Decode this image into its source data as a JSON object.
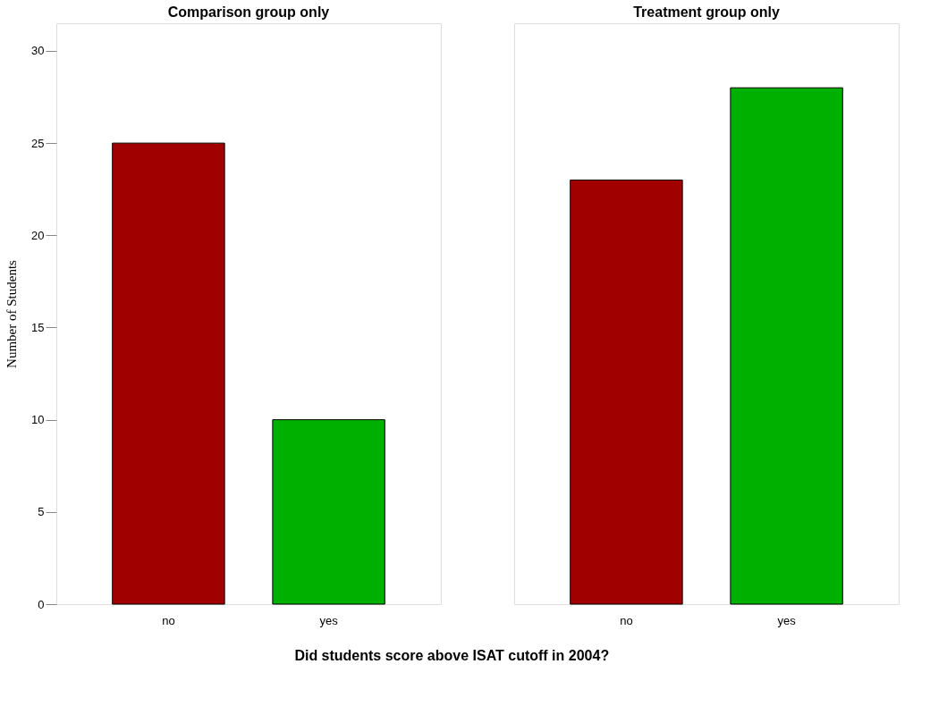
{
  "chart_data": [
    {
      "type": "bar",
      "title": "Comparison group only",
      "xlabel": "Did students score above ISAT cutoff in 2004?",
      "ylabel": "Number of Students",
      "categories": [
        "no",
        "yes"
      ],
      "values": [
        25,
        10
      ],
      "colors": [
        "#a00000",
        "#00b000"
      ],
      "ylim": [
        0,
        31.5
      ],
      "yticks": [
        0,
        5,
        10,
        15,
        20,
        25,
        30
      ]
    },
    {
      "type": "bar",
      "title": "Treatment group only",
      "categories": [
        "no",
        "yes"
      ],
      "values": [
        23,
        28
      ],
      "colors": [
        "#a00000",
        "#00b000"
      ],
      "ylim": [
        0,
        31.5
      ],
      "yticks": [
        0,
        5,
        10,
        15,
        20,
        25,
        30
      ],
      "tick_labels": "x"
    }
  ]
}
